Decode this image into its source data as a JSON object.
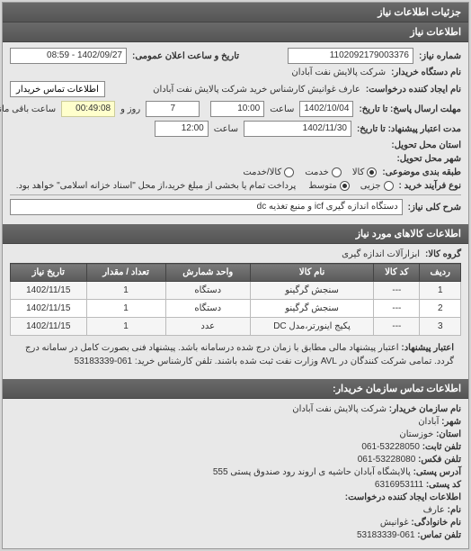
{
  "headers": {
    "main": "جزئیات اطلاعات نیاز",
    "basic_info": "اطلاعات نیاز",
    "goods_info": "اطلاعات کالاهای مورد نیاز",
    "buyer_contact": "اطلاعات تماس سازمان خریدار:"
  },
  "fields": {
    "request_number_label": "شماره نیاز:",
    "request_number": "1102092179003376",
    "announcement_date_label": "تاریخ و ساعت اعلان عمومی:",
    "announcement_date": "1402/09/27 - 08:59",
    "buyer_org_label": "نام دستگاه خریدار:",
    "buyer_org": "شرکت پالایش نفت آبادان",
    "requester_label": "نام ایجاد کننده درخواست:",
    "requester": "عارف غوانیش کارشناس خرید شرکت پالایش نفت آبادان",
    "buyer_contact_btn": "اطلاعات تماس خریدار",
    "response_deadline_label": "مهلت ارسال پاسخ: تا تاریخ:",
    "response_date": "1402/10/04",
    "response_time_label": "ساعت",
    "response_time": "10:00",
    "days_label": "روز و",
    "days_remaining": "7",
    "time_remaining": "00:49:08",
    "time_remaining_label": "ساعت باقی مانده",
    "validity_label": "مدت اعتبار پیشنهاد: تا تاریخ:",
    "validity_date": "1402/11/30",
    "validity_time_label": "ساعت",
    "validity_time": "12:00",
    "delivery_province_label": "استان محل تحویل:",
    "delivery_city_label": "شهر محل تحویل:",
    "classification_label": "طبقه بندی موضوعی:",
    "process_type_label": "نوع فرآیند خرید :",
    "process_note": "پرداخت تمام یا بخشی از مبلغ خرید،از محل \"اسناد خزانه اسلامی\" خواهد بود.",
    "need_desc_label": "شرح کلی نیاز:",
    "need_desc": "دستگاه اندازه گیری icf و منبع تغذیه dc",
    "goods_group_label": "گروه کالا:",
    "goods_group": "ابزارآلات اندازه گیری",
    "buyer_note_label": "اعتبار پیشنهاد:",
    "buyer_note": "اعتبار پیشنهاد مالی مطابق با زمان درج شده درسامانه باشد. پیشنهاد فنی بصورت کامل در سامانه درج گردد. تمامی شرکت کنندگان در AVL وزارت نفت ثبت شده باشند. تلفن کارشناس خرید: 061-53183339"
  },
  "radios": {
    "classification": [
      {
        "label": "کالا",
        "checked": true
      },
      {
        "label": "خدمت",
        "checked": false
      },
      {
        "label": "کالا/خدمت",
        "checked": false
      }
    ],
    "process": [
      {
        "label": "جزیی",
        "checked": false
      },
      {
        "label": "متوسط",
        "checked": true
      }
    ]
  },
  "table": {
    "columns": [
      "ردیف",
      "کد کالا",
      "نام کالا",
      "واحد شمارش",
      "تعداد / مقدار",
      "تاریخ نیاز"
    ],
    "rows": [
      [
        "1",
        "---",
        "سنجش گرگینو",
        "دستگاه",
        "1",
        "1402/11/15"
      ],
      [
        "2",
        "---",
        "سنجش گرگینو",
        "دستگاه",
        "1",
        "1402/11/15"
      ],
      [
        "3",
        "---",
        "پکیج اینورتر،مدل DC",
        "عدد",
        "1",
        "1402/11/15"
      ]
    ]
  },
  "contact": {
    "org_label": "نام سازمان خریدار:",
    "org": "شرکت پالایش نفت آبادان",
    "city_label": "شهر:",
    "city": "آبادان",
    "province_label": "استان:",
    "province": "خوزستان",
    "phone_label": "تلفن ثابت:",
    "phone": "53228050-061",
    "fax_label": "تلفن فکس:",
    "fax": "53228080-061",
    "address_label": "آدرس پستی:",
    "address": "پالایشگاه آبادان حاشیه ی اروند رود صندوق پستی 555",
    "postal_label": "کد پستی:",
    "postal": "6316953111",
    "requester_info_label": "اطلاعات ایجاد کننده درخواست:",
    "name_label": "نام:",
    "name": "عارف",
    "family_label": "نام خانوادگی:",
    "family": "غوانیش",
    "contact_phone_label": "تلفن تماس:",
    "contact_phone": "061-53183339"
  },
  "colors": {
    "header_bg": "#606060",
    "panel_bg": "#e8e8e8",
    "input_bg": "#ffffff",
    "yellow_bg": "#ffffcc"
  }
}
